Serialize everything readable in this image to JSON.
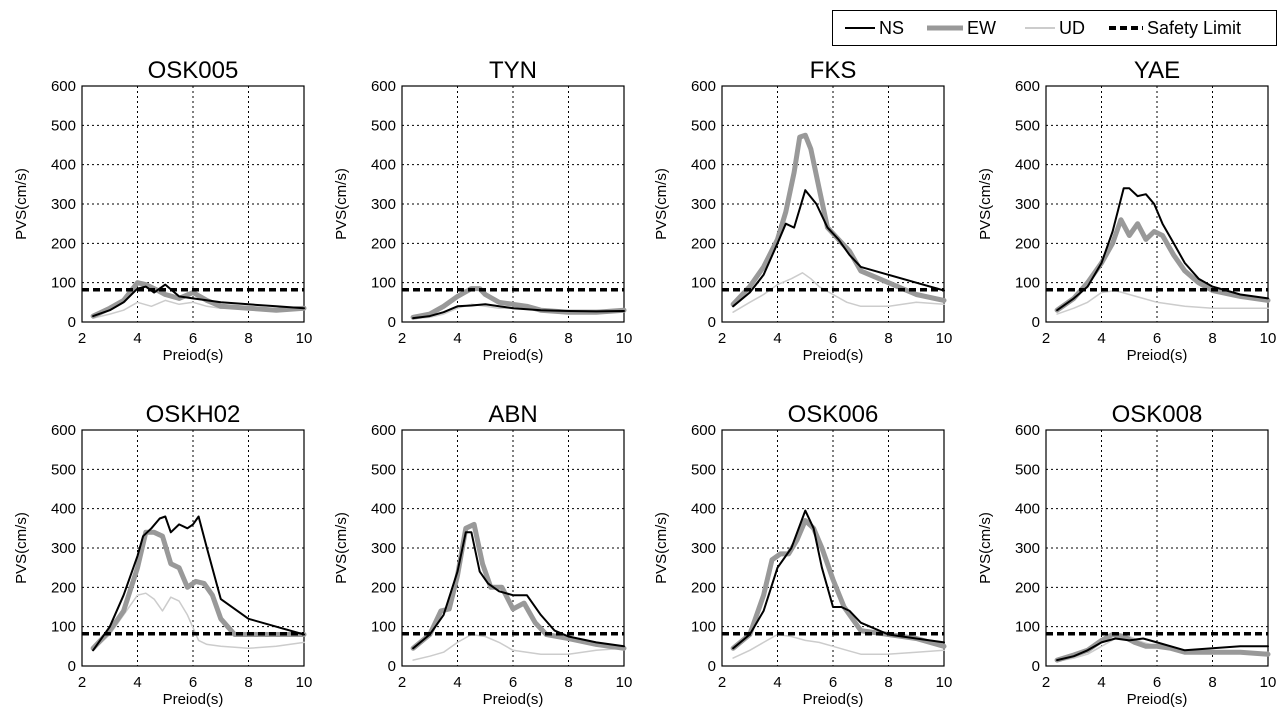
{
  "legend": {
    "items": [
      {
        "label": "NS",
        "color": "#000000",
        "style": "solid-thin"
      },
      {
        "label": "EW",
        "color": "#999999",
        "style": "solid-thick"
      },
      {
        "label": "UD",
        "color": "#cccccc",
        "style": "solid-thin"
      },
      {
        "label": "Safety Limit",
        "color": "#000000",
        "style": "dashed"
      }
    ]
  },
  "chart_data": [
    {
      "type": "line",
      "title": "OSK005",
      "xlabel": "Preiod(s)",
      "ylabel": "PVS(cm/s)",
      "xlim": [
        2,
        10
      ],
      "ylim": [
        0,
        600
      ],
      "xticks": [
        2,
        4,
        6,
        8,
        10
      ],
      "yticks": [
        0,
        100,
        200,
        300,
        400,
        500,
        600
      ],
      "grid": "vertical dotted at 4, 6, 8; horizontal dotted",
      "safety_limit": 82,
      "series": [
        {
          "name": "NS",
          "color": "#000000",
          "x": [
            2.4,
            3,
            3.5,
            4,
            4.3,
            4.6,
            5,
            5.5,
            6,
            7,
            8,
            9,
            10
          ],
          "y": [
            15,
            30,
            50,
            85,
            90,
            75,
            95,
            65,
            60,
            50,
            45,
            40,
            35
          ]
        },
        {
          "name": "EW",
          "color": "#999999",
          "x": [
            2.4,
            3,
            3.5,
            4,
            4.3,
            4.6,
            5,
            5.5,
            6,
            6.5,
            7,
            8,
            9,
            10
          ],
          "y": [
            15,
            35,
            55,
            100,
            95,
            85,
            70,
            60,
            75,
            55,
            40,
            35,
            30,
            35
          ]
        },
        {
          "name": "UD",
          "color": "#cccccc",
          "x": [
            2.4,
            3,
            3.5,
            4,
            4.5,
            5,
            5.5,
            6,
            6.5,
            7,
            8,
            9,
            10
          ],
          "y": [
            10,
            20,
            30,
            50,
            40,
            55,
            45,
            50,
            40,
            35,
            35,
            35,
            35
          ]
        }
      ]
    },
    {
      "type": "line",
      "title": "TYN",
      "xlabel": "Preiod(s)",
      "ylabel": "PVS(cm/s)",
      "xlim": [
        2,
        10
      ],
      "ylim": [
        0,
        600
      ],
      "xticks": [
        2,
        4,
        6,
        8,
        10
      ],
      "yticks": [
        0,
        100,
        200,
        300,
        400,
        500,
        600
      ],
      "grid": "vertical dotted at 4, 6, 8; horizontal dotted",
      "safety_limit": 82,
      "series": [
        {
          "name": "NS",
          "color": "#000000",
          "x": [
            2.4,
            3,
            3.5,
            4,
            4.5,
            5,
            5.5,
            6,
            7,
            8,
            9,
            10
          ],
          "y": [
            10,
            15,
            25,
            40,
            42,
            45,
            40,
            35,
            30,
            28,
            27,
            28
          ]
        },
        {
          "name": "EW",
          "color": "#999999",
          "x": [
            2.4,
            3,
            3.5,
            4,
            4.5,
            4.8,
            5,
            5.5,
            6,
            6.5,
            7,
            8,
            9,
            10
          ],
          "y": [
            12,
            20,
            40,
            65,
            85,
            85,
            70,
            50,
            45,
            40,
            30,
            25,
            25,
            30
          ]
        },
        {
          "name": "UD",
          "color": "#cccccc",
          "x": [
            2.4,
            3,
            3.5,
            4,
            4.5,
            5,
            5.5,
            6,
            7,
            8,
            9,
            10
          ],
          "y": [
            8,
            12,
            20,
            35,
            45,
            40,
            35,
            35,
            30,
            30,
            30,
            30
          ]
        }
      ]
    },
    {
      "type": "line",
      "title": "FKS",
      "xlabel": "Preiod(s)",
      "ylabel": "PVS(cm/s)",
      "xlim": [
        2,
        10
      ],
      "ylim": [
        0,
        600
      ],
      "xticks": [
        2,
        4,
        6,
        8,
        10
      ],
      "yticks": [
        0,
        100,
        200,
        300,
        400,
        500,
        600
      ],
      "grid": "vertical dotted at 4, 6, 8; horizontal dotted",
      "safety_limit": 82,
      "series": [
        {
          "name": "NS",
          "color": "#000000",
          "x": [
            2.4,
            3,
            3.5,
            4,
            4.3,
            4.6,
            5,
            5.4,
            5.8,
            6.2,
            6.6,
            7,
            8,
            9,
            10
          ],
          "y": [
            40,
            75,
            120,
            200,
            250,
            240,
            335,
            300,
            240,
            210,
            170,
            140,
            120,
            100,
            80
          ]
        },
        {
          "name": "EW",
          "color": "#999999",
          "x": [
            2.4,
            3,
            3.5,
            4,
            4.3,
            4.6,
            4.8,
            5,
            5.2,
            5.5,
            5.8,
            6.2,
            6.6,
            7,
            8,
            9,
            10
          ],
          "y": [
            45,
            90,
            140,
            210,
            280,
            380,
            470,
            475,
            440,
            340,
            240,
            210,
            180,
            130,
            100,
            70,
            55
          ]
        },
        {
          "name": "UD",
          "color": "#cccccc",
          "x": [
            2.4,
            3,
            3.5,
            4,
            4.5,
            4.9,
            5.2,
            5.5,
            6,
            6.5,
            7,
            8,
            9,
            10
          ],
          "y": [
            25,
            50,
            70,
            95,
            110,
            125,
            110,
            90,
            70,
            50,
            40,
            40,
            50,
            45
          ]
        }
      ]
    },
    {
      "type": "line",
      "title": "YAE",
      "xlabel": "Preiod(s)",
      "ylabel": "PVS(cm/s)",
      "xlim": [
        2,
        10
      ],
      "ylim": [
        0,
        600
      ],
      "xticks": [
        2,
        4,
        6,
        8,
        10
      ],
      "yticks": [
        0,
        100,
        200,
        300,
        400,
        500,
        600
      ],
      "grid": "vertical dotted at 4, 6, 8; horizontal dotted",
      "safety_limit": 82,
      "series": [
        {
          "name": "NS",
          "color": "#000000",
          "x": [
            2.4,
            3,
            3.5,
            4,
            4.4,
            4.8,
            5,
            5.3,
            5.6,
            5.9,
            6.2,
            6.6,
            7,
            7.5,
            8,
            9,
            10
          ],
          "y": [
            30,
            60,
            90,
            150,
            230,
            340,
            340,
            320,
            325,
            300,
            250,
            200,
            150,
            110,
            90,
            70,
            60
          ]
        },
        {
          "name": "EW",
          "color": "#999999",
          "x": [
            2.4,
            3,
            3.5,
            4,
            4.4,
            4.7,
            5,
            5.3,
            5.6,
            5.9,
            6.2,
            6.6,
            7,
            7.5,
            8,
            9,
            10
          ],
          "y": [
            30,
            60,
            100,
            150,
            200,
            260,
            220,
            250,
            210,
            230,
            220,
            170,
            130,
            100,
            80,
            65,
            55
          ]
        },
        {
          "name": "UD",
          "color": "#cccccc",
          "x": [
            2.4,
            3,
            3.5,
            4,
            4.5,
            5,
            5.5,
            6,
            7,
            8,
            9,
            10
          ],
          "y": [
            20,
            35,
            50,
            75,
            80,
            70,
            60,
            50,
            40,
            35,
            35,
            35
          ]
        }
      ]
    },
    {
      "type": "line",
      "title": "OSKH02",
      "xlabel": "Preiod(s)",
      "ylabel": "PVS(cm/s)",
      "xlim": [
        2,
        10
      ],
      "ylim": [
        0,
        600
      ],
      "xticks": [
        2,
        4,
        6,
        8,
        10
      ],
      "yticks": [
        0,
        100,
        200,
        300,
        400,
        500,
        600
      ],
      "grid": "vertical dotted at 4, 6, 8; horizontal dotted",
      "safety_limit": 82,
      "series": [
        {
          "name": "NS",
          "color": "#000000",
          "x": [
            2.4,
            3,
            3.5,
            4,
            4.2,
            4.5,
            4.8,
            5,
            5.2,
            5.5,
            5.8,
            6,
            6.2,
            6.5,
            7,
            8,
            9,
            10
          ],
          "y": [
            40,
            100,
            180,
            280,
            330,
            350,
            375,
            380,
            340,
            360,
            350,
            360,
            380,
            300,
            170,
            120,
            100,
            80
          ]
        },
        {
          "name": "EW",
          "color": "#999999",
          "x": [
            2.4,
            3,
            3.5,
            4,
            4.3,
            4.6,
            4.9,
            5.2,
            5.5,
            5.8,
            6.1,
            6.4,
            6.7,
            7,
            7.5,
            8,
            9,
            10
          ],
          "y": [
            45,
            90,
            140,
            250,
            340,
            340,
            330,
            260,
            250,
            200,
            215,
            210,
            180,
            120,
            80,
            80,
            80,
            80
          ]
        },
        {
          "name": "UD",
          "color": "#cccccc",
          "x": [
            2.4,
            3,
            3.5,
            4,
            4.3,
            4.6,
            4.9,
            5.2,
            5.5,
            5.8,
            6.2,
            6.5,
            7,
            8,
            9,
            10
          ],
          "y": [
            40,
            80,
            130,
            180,
            185,
            170,
            140,
            175,
            165,
            130,
            65,
            55,
            50,
            45,
            50,
            60
          ]
        }
      ]
    },
    {
      "type": "line",
      "title": "ABN",
      "xlabel": "Preiod(s)",
      "ylabel": "PVS(cm/s)",
      "xlim": [
        2,
        10
      ],
      "ylim": [
        0,
        600
      ],
      "xticks": [
        2,
        4,
        6,
        8,
        10
      ],
      "yticks": [
        0,
        100,
        200,
        300,
        400,
        500,
        600
      ],
      "grid": "vertical dotted at 4, 6, 8; horizontal dotted",
      "safety_limit": 82,
      "series": [
        {
          "name": "NS",
          "color": "#000000",
          "x": [
            2.4,
            3,
            3.5,
            4,
            4.3,
            4.5,
            4.8,
            5.1,
            5.5,
            6,
            6.5,
            7,
            7.5,
            8,
            9,
            10
          ],
          "y": [
            45,
            80,
            130,
            240,
            340,
            340,
            240,
            210,
            190,
            180,
            180,
            130,
            90,
            75,
            60,
            50
          ]
        },
        {
          "name": "EW",
          "color": "#999999",
          "x": [
            2.4,
            3,
            3.4,
            3.7,
            4,
            4.3,
            4.6,
            4.9,
            5.2,
            5.6,
            6,
            6.4,
            6.8,
            7.2,
            8,
            9,
            10
          ],
          "y": [
            45,
            80,
            140,
            145,
            230,
            350,
            360,
            260,
            200,
            200,
            145,
            160,
            110,
            80,
            70,
            55,
            45
          ]
        },
        {
          "name": "UD",
          "color": "#cccccc",
          "x": [
            2.4,
            3,
            3.5,
            4,
            4.5,
            5,
            5.5,
            6,
            7,
            8,
            9,
            10
          ],
          "y": [
            15,
            25,
            35,
            60,
            80,
            75,
            60,
            40,
            30,
            30,
            40,
            45
          ]
        }
      ]
    },
    {
      "type": "line",
      "title": "OSK006",
      "xlabel": "Preiod(s)",
      "ylabel": "PVS(cm/s)",
      "xlim": [
        2,
        10
      ],
      "ylim": [
        0,
        600
      ],
      "xticks": [
        2,
        4,
        6,
        8,
        10
      ],
      "yticks": [
        0,
        100,
        200,
        300,
        400,
        500,
        600
      ],
      "grid": "vertical dotted at 4, 6, 8; horizontal dotted",
      "safety_limit": 82,
      "series": [
        {
          "name": "NS",
          "color": "#000000",
          "x": [
            2.4,
            3,
            3.5,
            4,
            4.5,
            5,
            5.3,
            5.6,
            6,
            6.3,
            6.6,
            7,
            8,
            9,
            10
          ],
          "y": [
            45,
            80,
            140,
            250,
            300,
            395,
            350,
            250,
            150,
            150,
            140,
            110,
            80,
            70,
            60
          ]
        },
        {
          "name": "EW",
          "color": "#999999",
          "x": [
            2.4,
            3,
            3.5,
            3.8,
            4.1,
            4.4,
            4.7,
            5,
            5.3,
            5.6,
            6,
            6.4,
            7,
            8,
            9,
            10
          ],
          "y": [
            45,
            80,
            180,
            270,
            285,
            285,
            320,
            370,
            350,
            300,
            220,
            150,
            90,
            80,
            70,
            50
          ]
        },
        {
          "name": "UD",
          "color": "#cccccc",
          "x": [
            2.4,
            3,
            3.5,
            4,
            4.5,
            5,
            5.5,
            6,
            6.5,
            7,
            8,
            9,
            10
          ],
          "y": [
            20,
            40,
            60,
            80,
            75,
            65,
            60,
            50,
            40,
            30,
            30,
            35,
            40
          ]
        }
      ]
    },
    {
      "type": "line",
      "title": "OSK008",
      "xlabel": "Preiod(s)",
      "ylabel": "PVS(cm/s)",
      "xlim": [
        2,
        10
      ],
      "ylim": [
        0,
        600
      ],
      "xticks": [
        2,
        4,
        6,
        8,
        10
      ],
      "yticks": [
        0,
        100,
        200,
        300,
        400,
        500,
        600
      ],
      "grid": "vertical dotted at 4, 6, 8; horizontal dotted",
      "safety_limit": 82,
      "series": [
        {
          "name": "NS",
          "color": "#000000",
          "x": [
            2.4,
            3,
            3.5,
            4,
            4.5,
            5,
            5.5,
            6,
            7,
            8,
            9,
            10
          ],
          "y": [
            15,
            25,
            40,
            60,
            70,
            65,
            70,
            60,
            40,
            45,
            50,
            50
          ]
        },
        {
          "name": "EW",
          "color": "#999999",
          "x": [
            2.4,
            3,
            3.5,
            4,
            4.4,
            4.8,
            5.2,
            5.6,
            6,
            6.5,
            7,
            8,
            9,
            10
          ],
          "y": [
            15,
            28,
            40,
            65,
            80,
            75,
            60,
            50,
            50,
            45,
            35,
            35,
            35,
            30
          ]
        },
        {
          "name": "UD",
          "color": "#cccccc",
          "x": [
            2.4,
            3,
            3.5,
            4,
            4.5,
            5,
            5.5,
            6,
            7,
            8,
            9,
            10
          ],
          "y": [
            12,
            20,
            30,
            50,
            70,
            75,
            60,
            50,
            40,
            35,
            35,
            35
          ]
        }
      ]
    }
  ]
}
